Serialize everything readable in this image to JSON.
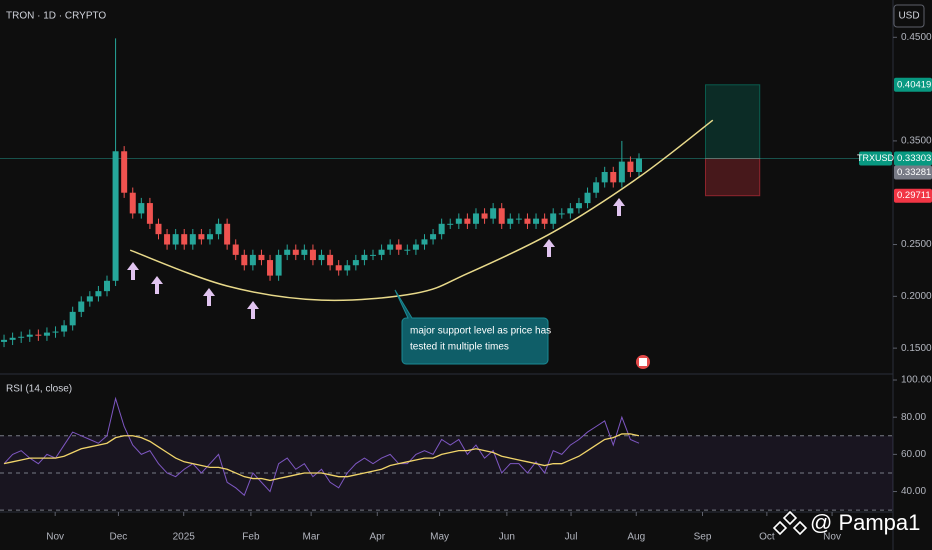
{
  "header": {
    "symbol": "TRON · 1D · CRYPTO",
    "currency": "USD"
  },
  "annotation": [
    "major support level as price has",
    "tested it multiple times"
  ],
  "watermark": "@ Pampa1",
  "chart_data": [
    {
      "type": "candlestick",
      "xlim": [
        -0.47,
        103.6
      ],
      "xticks": [
        {
          "value": 5.96,
          "label": "Nov"
        },
        {
          "value": 13.33,
          "label": "Dec"
        },
        {
          "value": 20.94,
          "label": "2025"
        },
        {
          "value": 28.77,
          "label": "Feb"
        },
        {
          "value": 35.79,
          "label": "Mar"
        },
        {
          "value": 43.5,
          "label": "Apr"
        },
        {
          "value": 50.76,
          "label": "May"
        },
        {
          "value": 58.6,
          "label": "Jun"
        },
        {
          "value": 66.08,
          "label": "Jul"
        },
        {
          "value": 73.68,
          "label": "Aug"
        },
        {
          "value": 81.4,
          "label": "Sep"
        },
        {
          "value": 88.9,
          "label": "Oct"
        },
        {
          "value": 96.5,
          "label": "Nov"
        }
      ],
      "ylim": [
        0.126,
        0.486
      ],
      "yticks": [
        {
          "value": 0.15,
          "label": "0.15000"
        },
        {
          "value": 0.2,
          "label": "0.20000"
        },
        {
          "value": 0.25,
          "label": "0.25000"
        },
        {
          "value": 0.35,
          "label": "0.35000"
        },
        {
          "value": 0.45,
          "label": "0.45000"
        }
      ],
      "up_color": "#26a69a",
      "down_color": "#ef5350",
      "open": [
        0.156,
        0.158,
        0.16,
        0.161,
        0.163,
        0.162,
        0.165,
        0.166,
        0.172,
        0.185,
        0.195,
        0.2,
        0.205,
        0.215,
        0.34,
        0.3,
        0.28,
        0.29,
        0.27,
        0.26,
        0.25,
        0.26,
        0.25,
        0.26,
        0.255,
        0.26,
        0.27,
        0.25,
        0.24,
        0.23,
        0.24,
        0.235,
        0.22,
        0.24,
        0.245,
        0.24,
        0.245,
        0.235,
        0.24,
        0.23,
        0.225,
        0.23,
        0.235,
        0.24,
        0.24,
        0.245,
        0.25,
        0.245,
        0.245,
        0.25,
        0.255,
        0.26,
        0.27,
        0.27,
        0.275,
        0.27,
        0.28,
        0.275,
        0.285,
        0.27,
        0.275,
        0.275,
        0.27,
        0.275,
        0.27,
        0.28,
        0.28,
        0.285,
        0.29,
        0.3,
        0.31,
        0.32,
        0.31,
        0.33,
        0.32
      ],
      "high": [
        0.163,
        0.165,
        0.166,
        0.168,
        0.168,
        0.17,
        0.171,
        0.177,
        0.19,
        0.2,
        0.205,
        0.21,
        0.22,
        0.449,
        0.345,
        0.305,
        0.295,
        0.295,
        0.275,
        0.265,
        0.265,
        0.265,
        0.265,
        0.265,
        0.265,
        0.275,
        0.275,
        0.255,
        0.245,
        0.245,
        0.245,
        0.24,
        0.245,
        0.25,
        0.25,
        0.25,
        0.25,
        0.245,
        0.245,
        0.235,
        0.235,
        0.24,
        0.245,
        0.245,
        0.25,
        0.255,
        0.255,
        0.25,
        0.255,
        0.26,
        0.265,
        0.275,
        0.275,
        0.28,
        0.28,
        0.285,
        0.285,
        0.29,
        0.29,
        0.28,
        0.28,
        0.28,
        0.28,
        0.28,
        0.285,
        0.285,
        0.29,
        0.295,
        0.305,
        0.315,
        0.325,
        0.325,
        0.35,
        0.335,
        0.338
      ],
      "low": [
        0.151,
        0.153,
        0.155,
        0.156,
        0.157,
        0.157,
        0.16,
        0.161,
        0.167,
        0.18,
        0.19,
        0.195,
        0.2,
        0.21,
        0.295,
        0.275,
        0.275,
        0.265,
        0.255,
        0.245,
        0.245,
        0.245,
        0.245,
        0.25,
        0.25,
        0.255,
        0.245,
        0.235,
        0.225,
        0.225,
        0.23,
        0.215,
        0.215,
        0.235,
        0.235,
        0.235,
        0.23,
        0.23,
        0.225,
        0.22,
        0.22,
        0.225,
        0.23,
        0.235,
        0.235,
        0.24,
        0.24,
        0.24,
        0.24,
        0.245,
        0.25,
        0.255,
        0.265,
        0.265,
        0.265,
        0.265,
        0.27,
        0.27,
        0.265,
        0.265,
        0.27,
        0.265,
        0.265,
        0.265,
        0.265,
        0.275,
        0.275,
        0.28,
        0.285,
        0.295,
        0.305,
        0.305,
        0.305,
        0.315,
        0.315
      ],
      "close": [
        0.158,
        0.16,
        0.161,
        0.163,
        0.162,
        0.165,
        0.166,
        0.172,
        0.185,
        0.195,
        0.2,
        0.205,
        0.215,
        0.34,
        0.3,
        0.28,
        0.29,
        0.27,
        0.26,
        0.25,
        0.26,
        0.25,
        0.26,
        0.255,
        0.26,
        0.27,
        0.25,
        0.24,
        0.23,
        0.24,
        0.235,
        0.22,
        0.24,
        0.245,
        0.24,
        0.245,
        0.235,
        0.24,
        0.23,
        0.225,
        0.23,
        0.235,
        0.24,
        0.24,
        0.245,
        0.25,
        0.245,
        0.245,
        0.25,
        0.255,
        0.26,
        0.27,
        0.27,
        0.275,
        0.27,
        0.28,
        0.275,
        0.285,
        0.27,
        0.275,
        0.275,
        0.27,
        0.275,
        0.27,
        0.28,
        0.28,
        0.285,
        0.29,
        0.3,
        0.31,
        0.32,
        0.31,
        0.33,
        0.32,
        0.333
      ],
      "symbol_tag": "TRXUSD",
      "last_price": 0.33303,
      "prev_close": 0.33281,
      "position": {
        "x": [
          81.75,
          88.07
        ],
        "target": 0.40419,
        "stop": 0.29711
      },
      "support_curve": {
        "x": [
          14.7,
          26,
          37,
          48,
          54,
          64,
          74,
          82.6
        ],
        "y": [
          0.2445,
          0.21,
          0.1963,
          0.203,
          0.222,
          0.262,
          0.315,
          0.37
        ],
        "color": "#e8d98a"
      }
    },
    {
      "type": "line",
      "title": "RSI (14, close)",
      "ylim": [
        29,
        102.7
      ],
      "yticks": [
        {
          "value": 40,
          "label": "40.00"
        },
        {
          "value": 60,
          "label": "60.00"
        },
        {
          "value": 80,
          "label": "80.00"
        },
        {
          "value": 100,
          "label": "100.00"
        }
      ],
      "bands": [
        30,
        50,
        70
      ],
      "series": [
        {
          "color": "#7e57c2",
          "values": [
            55,
            60,
            62,
            58,
            55,
            60,
            58,
            65,
            72,
            70,
            68,
            66,
            70,
            90,
            75,
            65,
            60,
            62,
            55,
            50,
            48,
            52,
            55,
            50,
            55,
            60,
            45,
            42,
            38,
            50,
            45,
            40,
            55,
            58,
            52,
            55,
            48,
            52,
            45,
            42,
            50,
            55,
            58,
            55,
            58,
            60,
            55,
            55,
            60,
            62,
            60,
            68,
            65,
            68,
            60,
            65,
            58,
            62,
            50,
            55,
            55,
            50,
            56,
            50,
            62,
            60,
            65,
            68,
            72,
            75,
            78,
            65,
            80,
            68,
            66
          ]
        },
        {
          "color": "#f0d46a",
          "values": [
            55,
            56,
            57,
            58,
            58,
            58,
            58,
            59,
            61,
            63,
            64,
            65,
            66,
            69,
            70,
            70,
            69,
            67,
            64,
            61,
            58,
            56,
            55,
            54,
            53,
            53,
            52,
            50,
            48,
            47,
            47,
            46,
            47,
            48,
            49,
            50,
            50,
            50,
            49,
            48,
            48,
            49,
            50,
            51,
            52,
            54,
            55,
            56,
            57,
            58,
            58,
            60,
            61,
            62,
            62,
            63,
            62,
            61,
            59,
            58,
            57,
            56,
            55,
            54,
            55,
            55,
            57,
            59,
            62,
            65,
            68,
            69,
            71,
            71,
            70
          ]
        }
      ]
    }
  ]
}
